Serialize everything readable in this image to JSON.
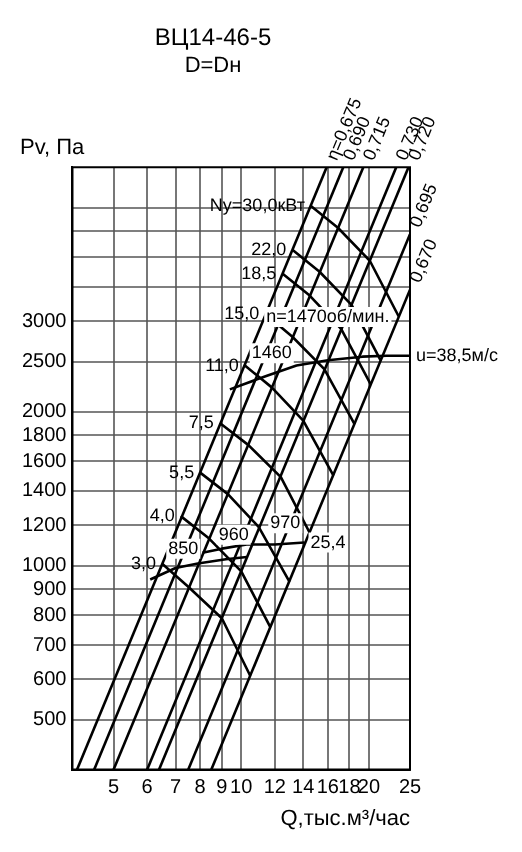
{
  "chart_data": {
    "type": "line",
    "title": "ВЦ14-46-5",
    "subtitle": "D=Dн",
    "ylabel": "Pv, Па",
    "xlabel": "Q,тыс.м³/час",
    "log": "xy",
    "grid": true,
    "marker": "none",
    "line_style": "solid",
    "xlim": [
      4,
      25
    ],
    "xticks": [
      5,
      6,
      7,
      8,
      9,
      10,
      12,
      14,
      16,
      18,
      20,
      25
    ],
    "ylim": [
      400,
      6000
    ],
    "yticks": [
      500,
      600,
      700,
      800,
      900,
      1000,
      1200,
      1400,
      1600,
      1800,
      2000,
      2500,
      3000,
      {
        "value": 3500,
        "label": null
      },
      {
        "value": 4000,
        "label": null
      },
      {
        "value": 4500,
        "label": null
      },
      {
        "value": 5000,
        "label": null
      }
    ],
    "series": [
      {
        "name": "η=0,675",
        "color": "#000000",
        "x": [
          4.1,
          15.9
        ],
        "values": [
          400,
          6000
        ]
      },
      {
        "name": "0,690",
        "color": "#000000",
        "x": [
          4.5,
          17.4
        ],
        "values": [
          400,
          6000
        ]
      },
      {
        "name": "0,715",
        "color": "#000000",
        "x": [
          5.0,
          19.4
        ],
        "values": [
          400,
          6000
        ]
      },
      {
        "name": "0,730",
        "color": "#000000",
        "x": [
          6.0,
          23.2
        ],
        "values": [
          400,
          6000
        ]
      },
      {
        "name": "0,720",
        "color": "#000000",
        "x": [
          6.4,
          24.8
        ],
        "values": [
          400,
          6000
        ]
      },
      {
        "name": "0,695",
        "color": "#000000",
        "x": [
          7.5,
          25
        ],
        "values": [
          400,
          4440
        ]
      },
      {
        "name": "0,670",
        "color": "#000000",
        "x": [
          8.5,
          25
        ],
        "values": [
          400,
          3460
        ]
      },
      {
        "name": "Ny=30,0кВт",
        "color": "#000000",
        "x": [
          14.6,
          16.9,
          20.1,
          23.5
        ],
        "values": [
          5040,
          4570,
          3940,
          3070
        ]
      },
      {
        "name": "22,0",
        "color": "#000000",
        "x": [
          13.2,
          15.3,
          18.2,
          21.3
        ],
        "values": [
          4140,
          3750,
          3230,
          2520
        ]
      },
      {
        "name": "18,5",
        "color": "#000000",
        "x": [
          12.5,
          14.5,
          17.2,
          20.2
        ],
        "values": [
          3720,
          3370,
          2900,
          2260
        ]
      },
      {
        "name": "15,0",
        "color": "#000000",
        "x": [
          11.4,
          13.2,
          15.7,
          18.5
        ],
        "values": [
          3100,
          2800,
          2420,
          1890
        ]
      },
      {
        "name": "11,0",
        "color": "#000000",
        "x": [
          10.2,
          11.8,
          14.0,
          16.5
        ],
        "values": [
          2460,
          2230,
          1920,
          1500
        ]
      },
      {
        "name": "7,5",
        "color": "#000000",
        "x": [
          8.9,
          10.4,
          12.4,
          14.5
        ],
        "values": [
          1900,
          1720,
          1490,
          1160
        ]
      },
      {
        "name": "5,5",
        "color": "#000000",
        "x": [
          8.0,
          9.3,
          11.0,
          13.0
        ],
        "values": [
          1520,
          1380,
          1190,
          930
        ]
      },
      {
        "name": "4,0",
        "color": "#000000",
        "x": [
          7.2,
          8.4,
          10.0,
          11.7
        ],
        "values": [
          1250,
          1130,
          975,
          760
        ]
      },
      {
        "name": "3,0",
        "color": "#000000",
        "x": [
          6.5,
          7.5,
          9.0,
          10.5
        ],
        "values": [
          1010,
          910,
          790,
          610
        ]
      },
      {
        "color": "#000000",
        "x": [
          9.4,
          11.5,
          13.5,
          16,
          19.3,
          22,
          25
        ],
        "values": [
          2210,
          2350,
          2460,
          2520,
          2560,
          2570,
          2570
        ]
      },
      {
        "color": "#000000",
        "x": [
          8.1,
          9.0,
          10.3,
          12.0,
          14.1
        ],
        "values": [
          1060,
          1080,
          1100,
          1100,
          1110
        ]
      },
      {
        "color": "#000000",
        "x": [
          6.1,
          7.0,
          7.9,
          9.2,
          10.3
        ],
        "values": [
          940,
          990,
          1010,
          1030,
          1040
        ]
      }
    ],
    "annotations": [
      {
        "text": "850",
        "x": 7.3,
        "y": 1080
      },
      {
        "text": "960",
        "x": 9.6,
        "y": 1150
      },
      {
        "text": "970",
        "x": 12.7,
        "y": 1210
      },
      {
        "text": "25,4",
        "x": 14.1,
        "y": 1110
      },
      {
        "text": "1460",
        "x": 11.8,
        "y": 2600
      },
      {
        "text": "n=1470об/мин.",
        "x": 16,
        "y": 3060
      },
      {
        "text": "u=38,5м/с",
        "x": 25,
        "y": 2570
      }
    ]
  }
}
